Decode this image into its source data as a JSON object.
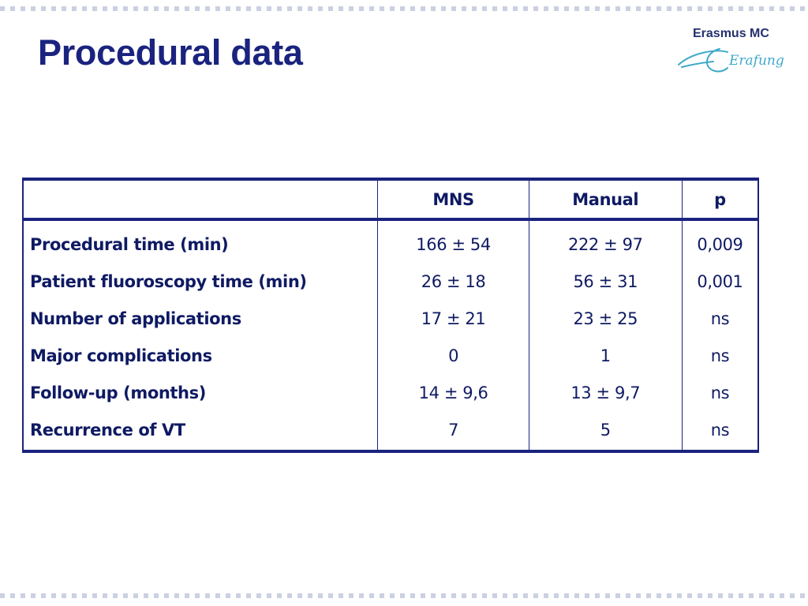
{
  "slide": {
    "title": "Procedural data",
    "accent_color": "#1a237e",
    "border_color": "#cbd0e2"
  },
  "logo": {
    "text": "Erasmus MC",
    "script_word": "Erafung",
    "icon": "erasmus-mc-logo-icon"
  },
  "table": {
    "headers": [
      "",
      "MNS",
      "Manual",
      "p"
    ],
    "rows": [
      {
        "label": "Procedural time (min)",
        "mns": "166 ± 54",
        "manual": "222 ± 97",
        "p": "0,009"
      },
      {
        "label": "Patient fluoroscopy time (min)",
        "mns": "26 ± 18",
        "manual": "56 ± 31",
        "p": "0,001"
      },
      {
        "label": "Number of applications",
        "mns": "17 ± 21",
        "manual": "23 ± 25",
        "p": "ns"
      },
      {
        "label": "Major complications",
        "mns": "0",
        "manual": "1",
        "p": "ns"
      },
      {
        "label": "Follow-up (months)",
        "mns": "14 ± 9,6",
        "manual": "13 ± 9,7",
        "p": "ns"
      },
      {
        "label": "Recurrence of VT",
        "mns": "7",
        "manual": "5",
        "p": "ns"
      }
    ]
  }
}
